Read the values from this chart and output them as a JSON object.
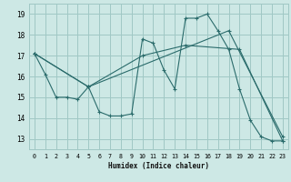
{
  "xlabel": "Humidex (Indice chaleur)",
  "background_color": "#cde8e5",
  "grid_color": "#a0c8c5",
  "line_color": "#2a6b6b",
  "x_ticks": [
    0,
    1,
    2,
    3,
    4,
    5,
    6,
    7,
    8,
    9,
    10,
    11,
    12,
    13,
    14,
    15,
    16,
    17,
    18,
    19,
    20,
    21,
    22,
    23
  ],
  "y_ticks": [
    13,
    14,
    15,
    16,
    17,
    18,
    19
  ],
  "xlim": [
    -0.5,
    23.5
  ],
  "ylim": [
    12.5,
    19.5
  ],
  "series1": {
    "x": [
      0,
      1,
      2,
      3,
      4,
      5,
      6,
      7,
      8,
      9,
      10,
      11,
      12,
      13,
      14,
      15,
      16,
      17,
      18,
      19,
      20,
      21,
      22,
      23
    ],
    "y": [
      17.1,
      16.1,
      15.0,
      15.0,
      14.9,
      15.5,
      14.3,
      14.1,
      14.1,
      14.2,
      17.8,
      17.6,
      16.3,
      15.4,
      18.8,
      18.8,
      19.0,
      18.2,
      17.3,
      15.4,
      13.9,
      13.1,
      12.9,
      12.9
    ]
  },
  "series2": {
    "x": [
      0,
      5,
      10,
      14,
      19,
      23
    ],
    "y": [
      17.1,
      15.5,
      17.0,
      17.5,
      17.3,
      12.9
    ]
  },
  "series3": {
    "x": [
      0,
      5,
      18,
      23
    ],
    "y": [
      17.1,
      15.5,
      18.2,
      13.1
    ]
  }
}
